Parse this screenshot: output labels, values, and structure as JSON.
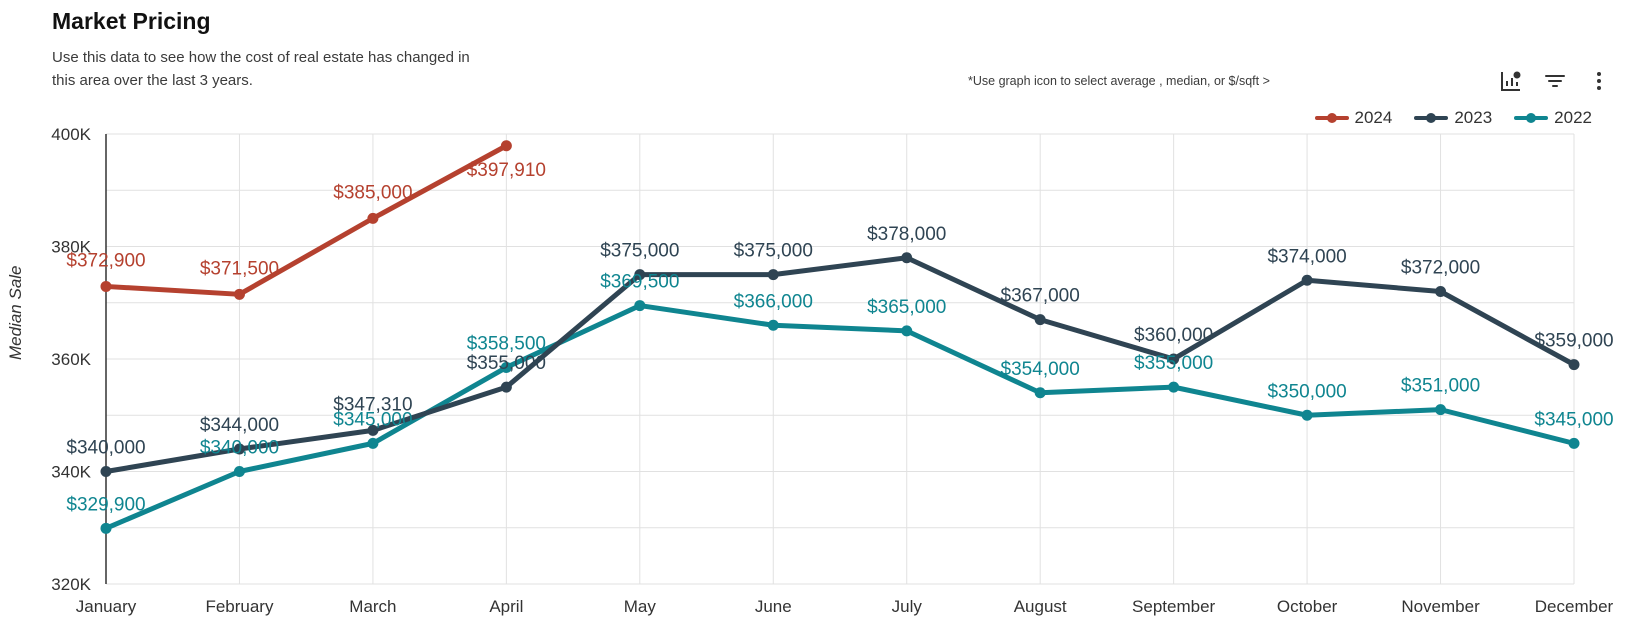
{
  "header": {
    "title": "Market Pricing",
    "subtitle": "Use this data to see how the cost of real estate has changed in this area over the last 3 years.",
    "hint": "*Use graph icon to  select average , median, or $/sqft  >"
  },
  "toolbar": {
    "icons": [
      "chart-settings-icon",
      "filter-icon",
      "more-vertical-icon"
    ]
  },
  "chart_data": {
    "type": "line",
    "title": "",
    "xlabel": "",
    "ylabel": "Median Sale",
    "ylim": [
      320000,
      400000
    ],
    "y_ticks": [
      {
        "value": 320000,
        "label": "320K"
      },
      {
        "value": 340000,
        "label": "340K"
      },
      {
        "value": 360000,
        "label": "360K"
      },
      {
        "value": 380000,
        "label": "380K"
      },
      {
        "value": 400000,
        "label": "400K"
      }
    ],
    "categories": [
      "January",
      "February",
      "March",
      "April",
      "May",
      "June",
      "July",
      "August",
      "September",
      "October",
      "November",
      "December"
    ],
    "grid": true,
    "legend_position": "top-right",
    "series": [
      {
        "name": "2024",
        "color": "#b5412f",
        "values": [
          372900,
          371500,
          385000,
          397910,
          null,
          null,
          null,
          null,
          null,
          null,
          null,
          null
        ],
        "labels": [
          "$372,900",
          "$371,500",
          "$385,000",
          "$397,910"
        ]
      },
      {
        "name": "2023",
        "color": "#2f4453",
        "values": [
          340000,
          344000,
          347310,
          355000,
          375000,
          375000,
          378000,
          367000,
          360000,
          374000,
          372000,
          359000
        ],
        "labels": [
          "$340,000",
          "$344,000",
          "$347,310",
          "$355,000",
          "$375,000",
          "$375,000",
          "$378,000",
          "$367,000",
          "$360,000",
          "$374,000",
          "$372,000",
          "$359,000"
        ]
      },
      {
        "name": "2022",
        "color": "#0f8590",
        "values": [
          329900,
          340000,
          345000,
          358500,
          369500,
          366000,
          365000,
          354000,
          355000,
          350000,
          351000,
          345000
        ],
        "labels": [
          "$329,900",
          "$340,000",
          "$345,000",
          "$358,500",
          "$369,500",
          "$366,000",
          "$365,000",
          "$354,000",
          "$355,000",
          "$350,000",
          "$351,000",
          "$345,000"
        ]
      }
    ]
  }
}
